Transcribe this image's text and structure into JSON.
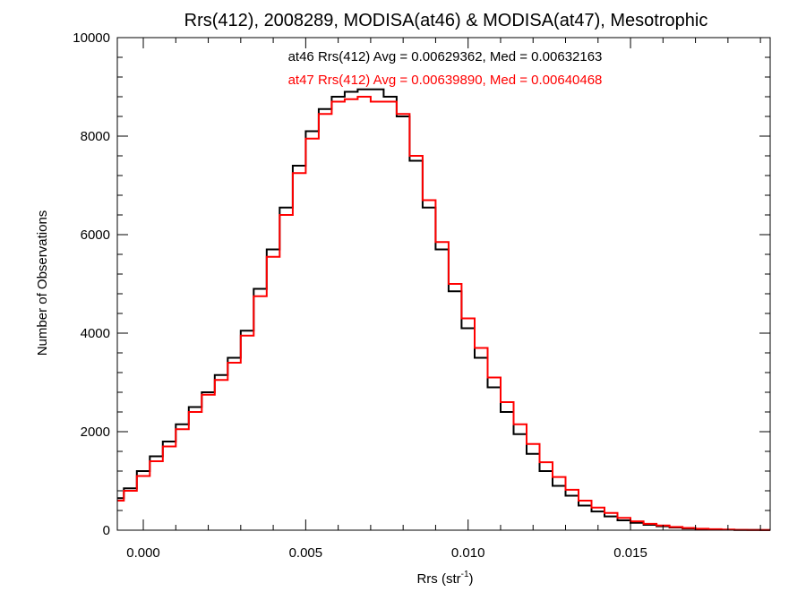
{
  "chart_data": {
    "type": "line",
    "title": "Rrs(412), 2008289, MODISA(at46) & MODISA(at47), Mesotrophic",
    "xlabel_main": "Rrs (str",
    "xlabel_sup": "-1",
    "xlabel_close": ")",
    "ylabel": "Number of Observations",
    "xlim": [
      -0.0008,
      0.0193
    ],
    "ylim": [
      0,
      10000
    ],
    "x_ticks": [
      0.0,
      0.005,
      0.01,
      0.015
    ],
    "x_tick_labels": [
      "0.000",
      "0.005",
      "0.010",
      "0.015"
    ],
    "y_ticks": [
      0,
      2000,
      4000,
      6000,
      8000,
      10000
    ],
    "y_tick_labels": [
      "0",
      "2000",
      "4000",
      "6000",
      "8000",
      "10000"
    ],
    "grid": false,
    "annotations": [
      {
        "text": "at46 Rrs(412) Avg = 0.00629362, Med = 0.00632163",
        "color": "#000000"
      },
      {
        "text": "at47 Rrs(412) Avg = 0.00639890, Med = 0.00640468",
        "color": "#ff0000"
      }
    ],
    "series": [
      {
        "color": "#000000",
        "x": [
          -0.0008,
          -0.0004,
          0.0,
          0.0004,
          0.0008,
          0.0012,
          0.0016,
          0.002,
          0.0024,
          0.0028,
          0.0032,
          0.0036,
          0.004,
          0.0044,
          0.0048,
          0.0052,
          0.0056,
          0.006,
          0.0064,
          0.0068,
          0.0072,
          0.0076,
          0.008,
          0.0084,
          0.0088,
          0.0092,
          0.0096,
          0.01,
          0.0104,
          0.0108,
          0.0112,
          0.0116,
          0.012,
          0.0124,
          0.0128,
          0.0132,
          0.0136,
          0.014,
          0.0144,
          0.0148,
          0.0152,
          0.0156,
          0.016,
          0.0164,
          0.0168,
          0.0172,
          0.0176,
          0.018,
          0.0184,
          0.0188,
          0.0192
        ],
        "y": [
          650,
          850,
          1200,
          1500,
          1800,
          2150,
          2500,
          2800,
          3150,
          3500,
          4050,
          4900,
          5700,
          6550,
          7400,
          8100,
          8550,
          8800,
          8900,
          8950,
          8950,
          8800,
          8400,
          7500,
          6550,
          5700,
          4850,
          4100,
          3500,
          2900,
          2400,
          1950,
          1550,
          1200,
          900,
          700,
          500,
          380,
          280,
          200,
          150,
          110,
          80,
          55,
          35,
          25,
          15,
          10,
          5,
          3,
          2
        ]
      },
      {
        "color": "#ff0000",
        "x": [
          -0.0008,
          -0.0004,
          0.0,
          0.0004,
          0.0008,
          0.0012,
          0.0016,
          0.002,
          0.0024,
          0.0028,
          0.0032,
          0.0036,
          0.004,
          0.0044,
          0.0048,
          0.0052,
          0.0056,
          0.006,
          0.0064,
          0.0068,
          0.0072,
          0.0076,
          0.008,
          0.0084,
          0.0088,
          0.0092,
          0.0096,
          0.01,
          0.0104,
          0.0108,
          0.0112,
          0.0116,
          0.012,
          0.0124,
          0.0128,
          0.0132,
          0.0136,
          0.014,
          0.0144,
          0.0148,
          0.0152,
          0.0156,
          0.016,
          0.0164,
          0.0168,
          0.0172,
          0.0176,
          0.018,
          0.0184,
          0.0188,
          0.0192
        ],
        "y": [
          600,
          800,
          1100,
          1400,
          1700,
          2050,
          2400,
          2750,
          3050,
          3400,
          3950,
          4750,
          5550,
          6400,
          7250,
          7950,
          8450,
          8700,
          8750,
          8800,
          8700,
          8700,
          8450,
          7600,
          6700,
          5850,
          5000,
          4300,
          3700,
          3100,
          2600,
          2150,
          1750,
          1380,
          1080,
          820,
          600,
          460,
          350,
          250,
          180,
          130,
          95,
          65,
          45,
          30,
          20,
          12,
          8,
          5,
          3
        ]
      }
    ]
  }
}
